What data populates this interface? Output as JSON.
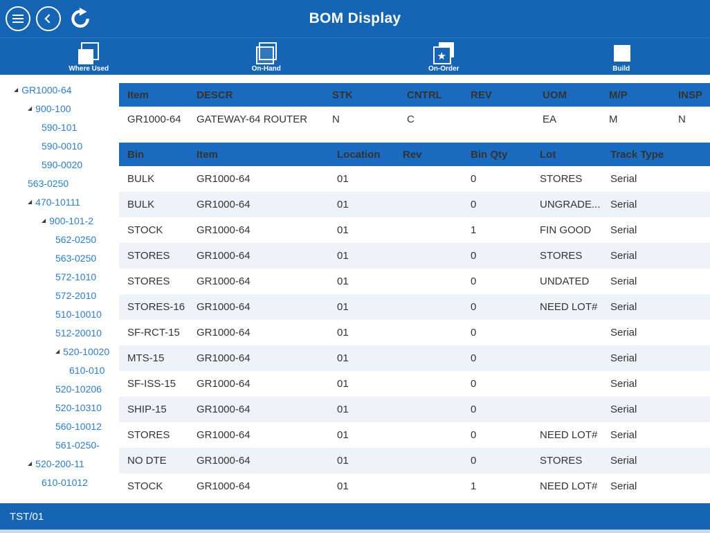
{
  "app": {
    "title": "BOM Display",
    "status_bar": "TST/01"
  },
  "colors": {
    "accent": "#1565b4",
    "table_header": "#1a6bbf",
    "tree_link": "#2e7dc6",
    "row_alt": "#eef3f9"
  },
  "toolbar": {
    "buttons": [
      {
        "label": "Where Used",
        "icon": "where-used-icon"
      },
      {
        "label": "On-Hand",
        "icon": "on-hand-icon"
      },
      {
        "label": "On-Order",
        "icon": "on-order-icon"
      },
      {
        "label": "Build",
        "icon": "build-icon"
      }
    ]
  },
  "tree": {
    "items": [
      {
        "label": "GR1000-64",
        "level": 0,
        "expanded": true
      },
      {
        "label": "900-100",
        "level": 1,
        "expanded": true
      },
      {
        "label": "590-101",
        "level": 2,
        "expanded": false
      },
      {
        "label": "590-0010",
        "level": 2,
        "expanded": false
      },
      {
        "label": "590-0020",
        "level": 2,
        "expanded": false
      },
      {
        "label": "563-0250",
        "level": 1,
        "expanded": false
      },
      {
        "label": "470-10111",
        "level": 1,
        "expanded": true
      },
      {
        "label": "900-101-2",
        "level": 2,
        "expanded": true
      },
      {
        "label": "562-0250",
        "level": 3,
        "expanded": false
      },
      {
        "label": "563-0250",
        "level": 3,
        "expanded": false
      },
      {
        "label": "572-1010",
        "level": 3,
        "expanded": false
      },
      {
        "label": "572-2010",
        "level": 3,
        "expanded": false
      },
      {
        "label": "510-10010",
        "level": 3,
        "expanded": false
      },
      {
        "label": "512-20010",
        "level": 3,
        "expanded": false
      },
      {
        "label": "520-10020",
        "level": 3,
        "expanded": true
      },
      {
        "label": "610-010",
        "level": 4,
        "expanded": false
      },
      {
        "label": "520-10206",
        "level": 3,
        "expanded": false
      },
      {
        "label": "520-10310",
        "level": 3,
        "expanded": false
      },
      {
        "label": "560-10012",
        "level": 3,
        "expanded": false
      },
      {
        "label": "561-0250-",
        "level": 3,
        "expanded": false
      },
      {
        "label": "520-200-11",
        "level": 1,
        "expanded": true
      },
      {
        "label": "610-01012",
        "level": 2,
        "expanded": false
      }
    ]
  },
  "item_table": {
    "columns": [
      "Item",
      "DESCR",
      "STK",
      "CNTRL",
      "REV",
      "UOM",
      "M/P",
      "INSP"
    ],
    "rows": [
      [
        "GR1000-64",
        "GATEWAY-64 ROUTER",
        "N",
        "C",
        "",
        "EA",
        "M",
        "N"
      ]
    ]
  },
  "bin_table": {
    "columns": [
      "Bin",
      "Item",
      "Location",
      "Rev",
      "Bin Qty",
      "Lot",
      "Track Type"
    ],
    "rows": [
      [
        "BULK",
        "GR1000-64",
        "01",
        "",
        "0",
        "STORES",
        "Serial"
      ],
      [
        "BULK",
        "GR1000-64",
        "01",
        "",
        "0",
        "UNGRADE...",
        "Serial"
      ],
      [
        "STOCK",
        "GR1000-64",
        "01",
        "",
        "1",
        "FIN GOOD",
        "Serial"
      ],
      [
        "STORES",
        "GR1000-64",
        "01",
        "",
        "0",
        "STORES",
        "Serial"
      ],
      [
        "STORES",
        "GR1000-64",
        "01",
        "",
        "0",
        "UNDATED",
        "Serial"
      ],
      [
        "STORES-16",
        "GR1000-64",
        "01",
        "",
        "0",
        "NEED LOT#",
        "Serial"
      ],
      [
        "SF-RCT-15",
        "GR1000-64",
        "01",
        "",
        "0",
        "",
        "Serial"
      ],
      [
        "MTS-15",
        "GR1000-64",
        "01",
        "",
        "0",
        "",
        "Serial"
      ],
      [
        "SF-ISS-15",
        "GR1000-64",
        "01",
        "",
        "0",
        "",
        "Serial"
      ],
      [
        "SHIP-15",
        "GR1000-64",
        "01",
        "",
        "0",
        "",
        "Serial"
      ],
      [
        "STORES",
        "GR1000-64",
        "01",
        "",
        "0",
        "NEED LOT#",
        "Serial"
      ],
      [
        "NO DTE",
        "GR1000-64",
        "01",
        "",
        "0",
        "STORES",
        "Serial"
      ],
      [
        "STOCK",
        "GR1000-64",
        "01",
        "",
        "1",
        "NEED LOT#",
        "Serial"
      ]
    ]
  }
}
